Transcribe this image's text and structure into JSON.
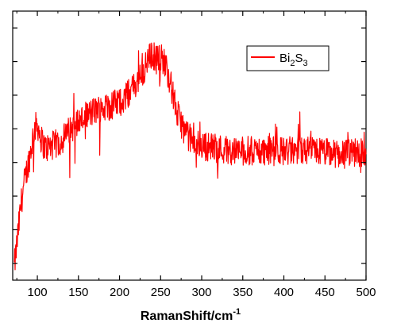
{
  "chart_data": {
    "type": "line",
    "title": "",
    "xlabel": "RamanShift/cm",
    "xlabel_superscript": "-1",
    "ylabel": "",
    "xlim": [
      70,
      500
    ],
    "ylim": [
      0,
      10
    ],
    "xticks": [
      100,
      150,
      200,
      250,
      300,
      350,
      400,
      450,
      500
    ],
    "ytick_count": 8,
    "grid": false,
    "legend_position": "top-right",
    "series": [
      {
        "name_main": "Bi",
        "name_sub1": "2",
        "name_mid": "S",
        "name_sub2": "3",
        "color": "#ff0000",
        "noise_amplitude": 0.55,
        "x": [
          72,
          76,
          80,
          84,
          88,
          92,
          96,
          100,
          105,
          110,
          120,
          130,
          140,
          150,
          160,
          170,
          180,
          190,
          200,
          210,
          220,
          230,
          235,
          240,
          245,
          250,
          255,
          260,
          265,
          270,
          280,
          290,
          300,
          320,
          340,
          360,
          380,
          400,
          420,
          440,
          460,
          480,
          500
        ],
        "y": [
          0.5,
          1.6,
          2.8,
          3.6,
          4.2,
          4.8,
          5.6,
          5.8,
          5.2,
          4.9,
          5.0,
          5.2,
          5.6,
          5.9,
          6.1,
          6.3,
          6.4,
          6.5,
          6.6,
          6.9,
          7.3,
          7.8,
          8.2,
          8.4,
          8.2,
          8.3,
          8.1,
          7.6,
          6.9,
          6.2,
          5.5,
          5.1,
          5.0,
          4.9,
          4.8,
          4.8,
          4.8,
          4.8,
          4.8,
          4.8,
          4.7,
          4.7,
          4.8
        ]
      }
    ]
  }
}
